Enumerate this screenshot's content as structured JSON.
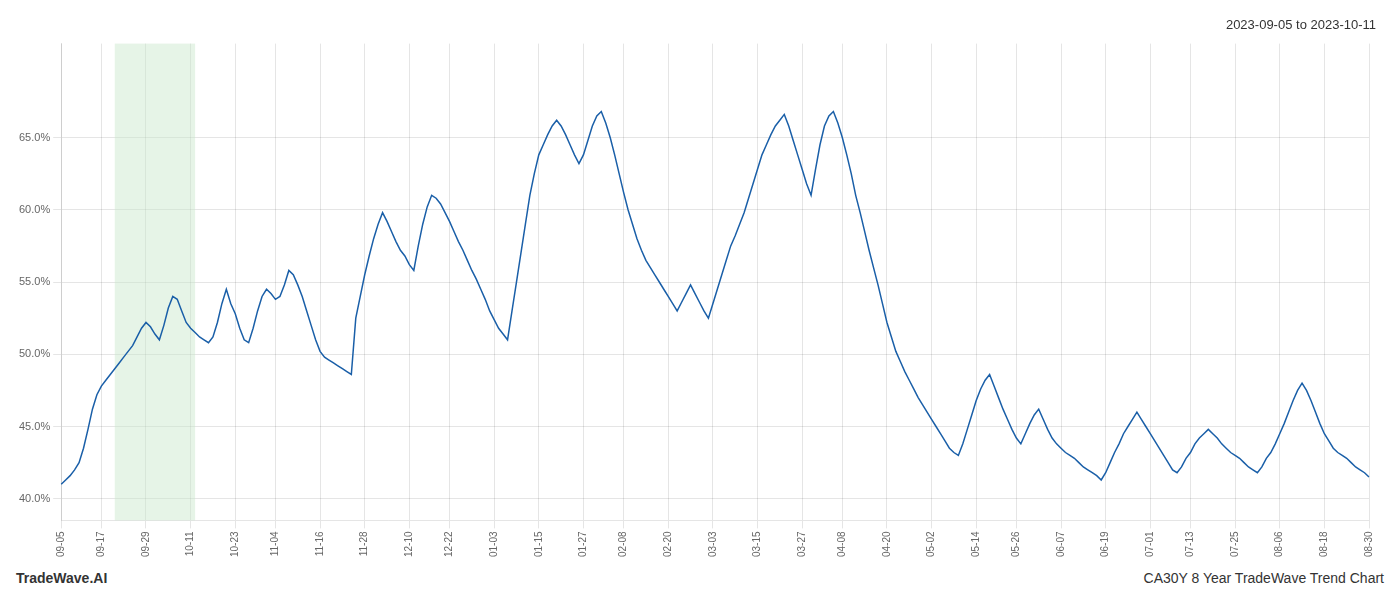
{
  "chart_data": {
    "type": "line",
    "title": "2023-09-05 to 2023-10-11",
    "annotations": [
      "TradeWave.AI",
      "CA30Y 8 Year TradeWave Trend Chart"
    ],
    "color": "#1a5fa8",
    "highlight": {
      "start": 12,
      "end": 30,
      "color": "#c8e6c9"
    },
    "ylim": [
      0.385,
      0.715
    ],
    "yticks": [
      {
        "value": 0.4,
        "label": "40.0%"
      },
      {
        "value": 0.45,
        "label": "45.0%"
      },
      {
        "value": 0.5,
        "label": "50.0%"
      },
      {
        "value": 0.55,
        "label": "55.0%"
      },
      {
        "value": 0.6,
        "label": "60.0%"
      },
      {
        "value": 0.65,
        "label": "65.0%"
      }
    ],
    "grid": true,
    "categories": [
      "09-05",
      null,
      null,
      null,
      null,
      null,
      null,
      null,
      null,
      "09-17",
      null,
      null,
      null,
      null,
      null,
      null,
      null,
      null,
      null,
      "09-29",
      null,
      null,
      null,
      null,
      null,
      null,
      null,
      null,
      null,
      "10-11",
      null,
      null,
      null,
      null,
      null,
      null,
      null,
      null,
      null,
      "10-23",
      null,
      null,
      null,
      null,
      null,
      null,
      null,
      null,
      "11-04",
      null,
      null,
      null,
      null,
      null,
      null,
      null,
      null,
      null,
      "11-16",
      null,
      null,
      null,
      null,
      null,
      null,
      null,
      null,
      null,
      "11-28",
      null,
      null,
      null,
      null,
      null,
      null,
      null,
      null,
      null,
      "12-10",
      null,
      null,
      null,
      null,
      null,
      null,
      null,
      null,
      "12-22",
      null,
      null,
      null,
      null,
      null,
      null,
      null,
      null,
      null,
      "01-03",
      null,
      null,
      null,
      null,
      null,
      null,
      null,
      null,
      null,
      "01-15",
      null,
      null,
      null,
      null,
      null,
      null,
      null,
      null,
      null,
      "01-27",
      null,
      null,
      null,
      null,
      null,
      null,
      null,
      null,
      "02-08",
      null,
      null,
      null,
      null,
      null,
      null,
      null,
      null,
      null,
      "02-20",
      null,
      null,
      null,
      null,
      null,
      null,
      null,
      null,
      null,
      "03-03",
      null,
      null,
      null,
      null,
      null,
      null,
      null,
      null,
      null,
      "03-15",
      null,
      null,
      null,
      null,
      null,
      null,
      null,
      null,
      null,
      "03-27",
      null,
      null,
      null,
      null,
      null,
      null,
      null,
      null,
      "04-08",
      null,
      null,
      null,
      null,
      null,
      null,
      null,
      null,
      null,
      "04-20",
      null,
      null,
      null,
      null,
      null,
      null,
      null,
      null,
      null,
      "05-02",
      null,
      null,
      null,
      null,
      null,
      null,
      null,
      null,
      null,
      "05-14",
      null,
      null,
      null,
      null,
      null,
      null,
      null,
      null,
      "05-26",
      null,
      null,
      null,
      null,
      null,
      null,
      null,
      null,
      null,
      "06-07",
      null,
      null,
      null,
      null,
      null,
      null,
      null,
      null,
      null,
      "06-19",
      null,
      null,
      null,
      null,
      null,
      null,
      null,
      null,
      null,
      "07-01",
      null,
      null,
      null,
      null,
      null,
      null,
      null,
      null,
      "07-13",
      null,
      null,
      null,
      null,
      null,
      null,
      null,
      null,
      null,
      "07-25",
      null,
      null,
      null,
      null,
      null,
      null,
      null,
      null,
      null,
      "08-06",
      null,
      null,
      null,
      null,
      null,
      null,
      null,
      null,
      null,
      "08-18",
      null,
      null,
      null,
      null,
      null,
      null,
      null,
      null,
      null,
      "08-30"
    ],
    "values": [
      0.41,
      0.413,
      0.416,
      0.42,
      0.425,
      0.435,
      0.448,
      0.462,
      0.472,
      0.478,
      0.482,
      0.486,
      0.49,
      0.494,
      0.498,
      0.502,
      0.506,
      0.512,
      0.518,
      0.522,
      0.519,
      0.514,
      0.51,
      0.52,
      0.532,
      0.54,
      0.538,
      0.53,
      0.522,
      0.518,
      0.515,
      0.512,
      0.51,
      0.508,
      0.512,
      0.522,
      0.535,
      0.545,
      0.535,
      0.528,
      0.518,
      0.51,
      0.508,
      0.518,
      0.53,
      0.54,
      0.545,
      0.542,
      0.538,
      0.54,
      0.548,
      0.558,
      0.555,
      0.548,
      0.54,
      0.53,
      0.52,
      0.51,
      0.502,
      0.498,
      0.496,
      0.494,
      0.492,
      0.49,
      0.488,
      0.486,
      0.525,
      0.54,
      0.555,
      0.568,
      0.58,
      0.59,
      0.598,
      0.592,
      0.585,
      0.578,
      0.572,
      0.568,
      0.562,
      0.558,
      0.575,
      0.59,
      0.602,
      0.61,
      0.608,
      0.604,
      0.598,
      0.592,
      0.585,
      0.578,
      0.572,
      0.565,
      0.558,
      0.552,
      0.545,
      0.538,
      0.53,
      0.524,
      0.518,
      0.514,
      0.51,
      0.53,
      0.55,
      0.57,
      0.59,
      0.61,
      0.625,
      0.638,
      0.645,
      0.652,
      0.658,
      0.662,
      0.658,
      0.652,
      0.645,
      0.638,
      0.632,
      0.638,
      0.648,
      0.658,
      0.665,
      0.668,
      0.66,
      0.65,
      0.638,
      0.625,
      0.612,
      0.6,
      0.59,
      0.58,
      0.572,
      0.565,
      0.56,
      0.555,
      0.55,
      0.545,
      0.54,
      0.535,
      0.53,
      0.536,
      0.542,
      0.548,
      0.542,
      0.536,
      0.53,
      0.525,
      0.535,
      0.545,
      0.555,
      0.565,
      0.575,
      0.582,
      0.59,
      0.598,
      0.608,
      0.618,
      0.628,
      0.638,
      0.645,
      0.652,
      0.658,
      0.662,
      0.666,
      0.658,
      0.648,
      0.638,
      0.628,
      0.618,
      0.61,
      0.628,
      0.645,
      0.658,
      0.665,
      0.668,
      0.66,
      0.65,
      0.638,
      0.625,
      0.61,
      0.598,
      0.585,
      0.572,
      0.56,
      0.548,
      0.535,
      0.522,
      0.512,
      0.502,
      0.495,
      0.488,
      0.482,
      0.476,
      0.47,
      0.465,
      0.46,
      0.455,
      0.45,
      0.445,
      0.44,
      0.435,
      0.432,
      0.43,
      0.438,
      0.448,
      0.458,
      0.468,
      0.476,
      0.482,
      0.486,
      0.478,
      0.47,
      0.462,
      0.455,
      0.448,
      0.442,
      0.438,
      0.445,
      0.452,
      0.458,
      0.462,
      0.455,
      0.448,
      0.442,
      0.438,
      0.435,
      0.432,
      0.43,
      0.428,
      0.425,
      0.422,
      0.42,
      0.418,
      0.416,
      0.413,
      0.418,
      0.425,
      0.432,
      0.438,
      0.445,
      0.45,
      0.455,
      0.46,
      0.455,
      0.45,
      0.445,
      0.44,
      0.435,
      0.43,
      0.425,
      0.42,
      0.418,
      0.422,
      0.428,
      0.432,
      0.438,
      0.442,
      0.445,
      0.448,
      0.445,
      0.442,
      0.438,
      0.435,
      0.432,
      0.43,
      0.428,
      0.425,
      0.422,
      0.42,
      0.418,
      0.422,
      0.428,
      0.432,
      0.438,
      0.445,
      0.452,
      0.46,
      0.468,
      0.475,
      0.48,
      0.475,
      0.468,
      0.46,
      0.452,
      0.445,
      0.44,
      0.435,
      0.432,
      0.43,
      0.428,
      0.425,
      0.422,
      0.42,
      0.418,
      0.415
    ]
  }
}
